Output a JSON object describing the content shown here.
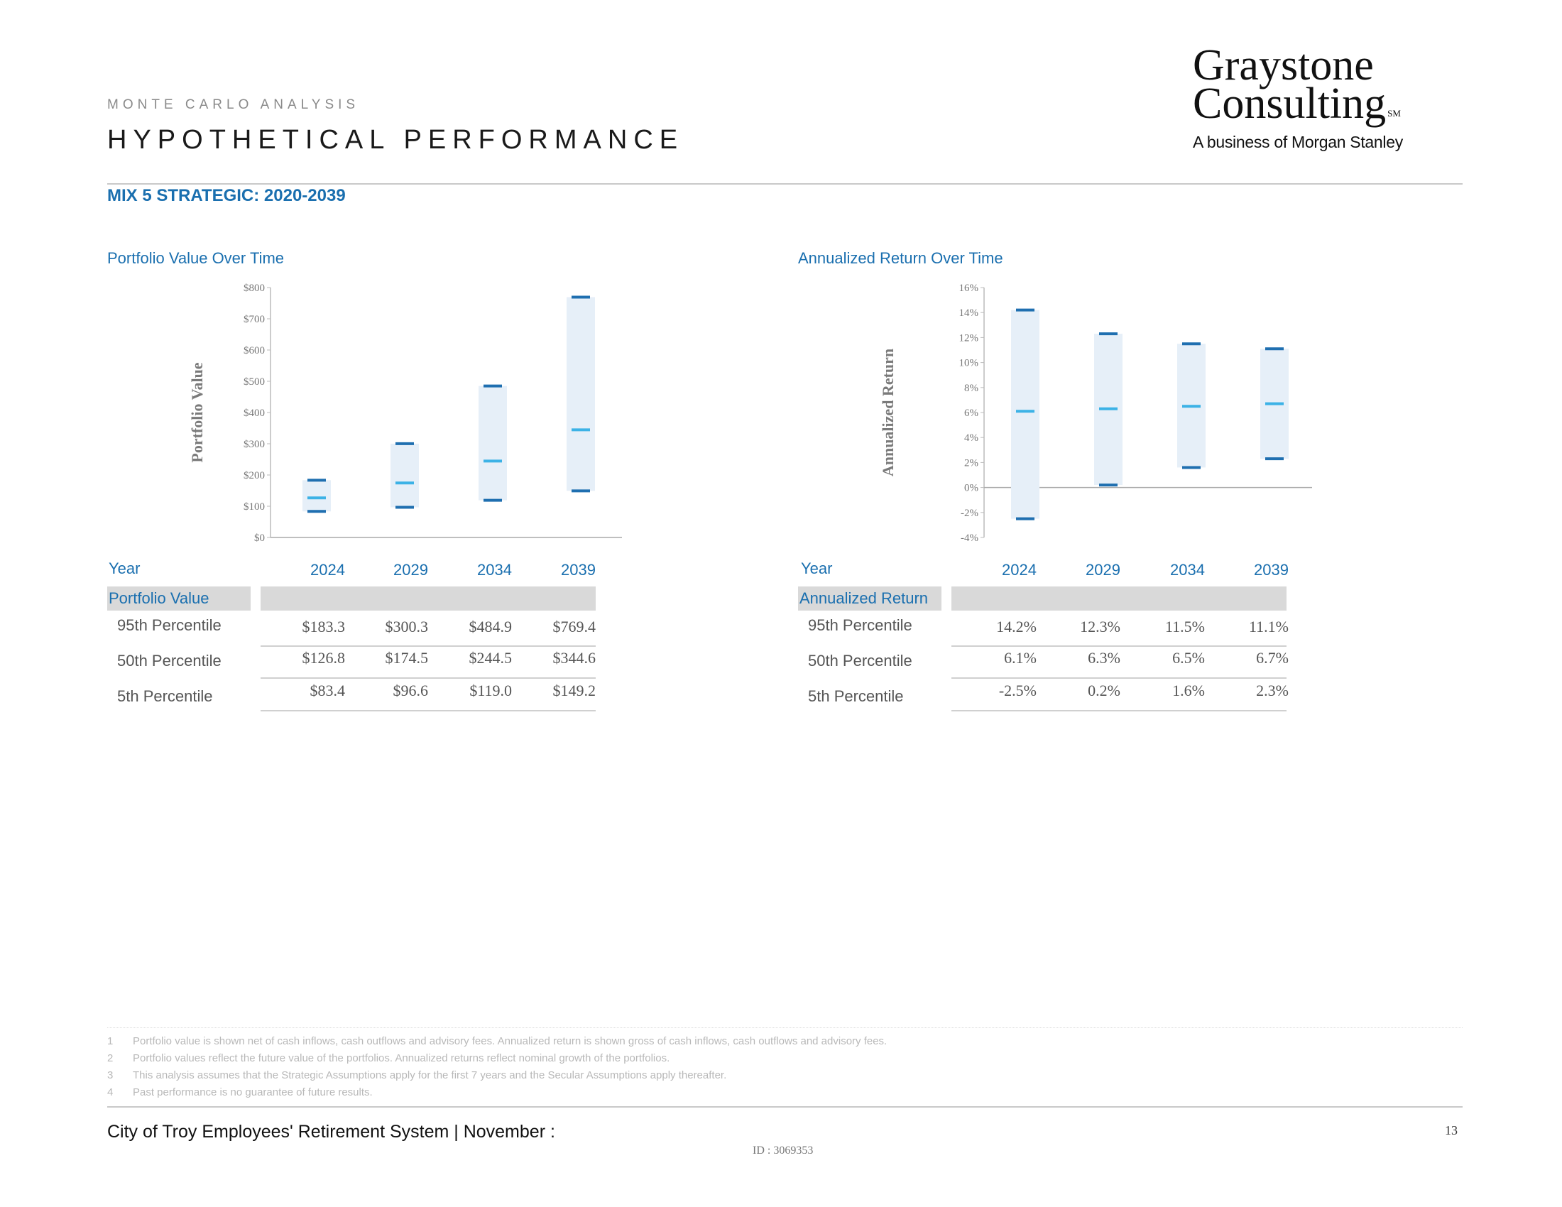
{
  "header": {
    "kicker": "MONTE CARLO ANALYSIS",
    "title": "HYPOTHETICAL PERFORMANCE",
    "logo_line1": "Graystone",
    "logo_line2": "Consulting",
    "logo_sm": "SM",
    "logo_line3": "A business of Morgan Stanley"
  },
  "subtitle": "MIX 5 STRATEGIC:  2020-2039",
  "colors": {
    "accent": "#1a6faf",
    "band": "#e6eff8",
    "outer_mark": "#1f6fb0",
    "median_mark": "#3cb2e6",
    "table_header_bg": "#d9d9d9"
  },
  "chart_data": [
    {
      "type": "bar",
      "title": "Portfolio Value  Over Time",
      "ylabel": "Portfolio Value",
      "categories": [
        "2024",
        "2029",
        "2034",
        "2039"
      ],
      "series": [
        {
          "name": "95th Percentile",
          "values": [
            183.3,
            300.3,
            484.9,
            769.4
          ]
        },
        {
          "name": "50th Percentile",
          "values": [
            126.8,
            174.5,
            244.5,
            344.6
          ]
        },
        {
          "name": "5th Percentile",
          "values": [
            83.4,
            96.6,
            119.0,
            149.2
          ]
        }
      ],
      "ylim": [
        0,
        800
      ],
      "yticks": [
        0,
        100,
        200,
        300,
        400,
        500,
        600,
        700,
        800
      ],
      "ytick_labels": [
        "$0",
        "$100",
        "$200",
        "$300",
        "$400",
        "$500",
        "$600",
        "$700",
        "$800"
      ],
      "grid": false
    },
    {
      "type": "bar",
      "title": "Annualized Return Over Time",
      "ylabel": "Annualized Return",
      "categories": [
        "2024",
        "2029",
        "2034",
        "2039"
      ],
      "series": [
        {
          "name": "95th Percentile",
          "values": [
            14.2,
            12.3,
            11.5,
            11.1
          ]
        },
        {
          "name": "50th Percentile",
          "values": [
            6.1,
            6.3,
            6.5,
            6.7
          ]
        },
        {
          "name": "5th Percentile",
          "values": [
            -2.5,
            0.2,
            1.6,
            2.3
          ]
        }
      ],
      "ylim": [
        -4,
        16
      ],
      "yticks": [
        -4,
        -2,
        0,
        2,
        4,
        6,
        8,
        10,
        12,
        14,
        16
      ],
      "ytick_labels": [
        "-4%",
        "-2%",
        "0%",
        "2%",
        "4%",
        "6%",
        "8%",
        "10%",
        "12%",
        "14%",
        "16%"
      ],
      "grid": false
    }
  ],
  "tables": {
    "value": {
      "year_label": "Year",
      "section_label": "Portfolio Value",
      "years": [
        "2024",
        "2029",
        "2034",
        "2039"
      ],
      "rows": [
        {
          "label": "95th Percentile",
          "cells": [
            "$183.3",
            "$300.3",
            "$484.9",
            "$769.4"
          ]
        },
        {
          "label": "50th Percentile",
          "cells": [
            "$126.8",
            "$174.5",
            "$244.5",
            "$344.6"
          ]
        },
        {
          "label": "5th Percentile",
          "cells": [
            "$83.4",
            "$96.6",
            "$119.0",
            "$149.2"
          ]
        }
      ]
    },
    "return": {
      "year_label": "Year",
      "section_label": "Annualized Return",
      "years": [
        "2024",
        "2029",
        "2034",
        "2039"
      ],
      "rows": [
        {
          "label": "95th Percentile",
          "cells": [
            "14.2%",
            "12.3%",
            "11.5%",
            "11.1%"
          ]
        },
        {
          "label": "50th Percentile",
          "cells": [
            "6.1%",
            "6.3%",
            "6.5%",
            "6.7%"
          ]
        },
        {
          "label": "5th Percentile",
          "cells": [
            "-2.5%",
            "0.2%",
            "1.6%",
            "2.3%"
          ]
        }
      ]
    }
  },
  "footnotes": [
    {
      "num": "1",
      "text": "Portfolio value is shown net of cash inflows, cash outflows and advisory fees. Annualized return is shown gross of cash inflows, cash outflows and advisory fees."
    },
    {
      "num": "2",
      "text": "Portfolio values reflect the future value of the portfolios. Annualized returns reflect nominal growth of the portfolios."
    },
    {
      "num": "3",
      "text": "This analysis assumes that the Strategic Assumptions apply for the first 7 years and the Secular Assumptions apply thereafter."
    },
    {
      "num": "4",
      "text": "Past performance is no guarantee of future results."
    }
  ],
  "footer": {
    "left": "City of Troy Employees' Retirement System | November :",
    "id": "ID : 3069353",
    "page": "13"
  }
}
